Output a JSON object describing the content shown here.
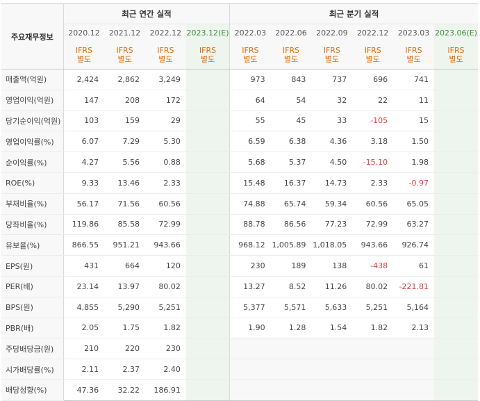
{
  "table": {
    "corner_label": "주요재무정보",
    "annual_title": "최근 연간 실적",
    "quarter_title": "최근 분기 실적",
    "annual_periods": [
      "2020.12",
      "2021.12",
      "2022.12",
      "2023.12(E)"
    ],
    "quarter_periods": [
      "2022.03",
      "2022.06",
      "2022.09",
      "2022.12",
      "2023.03",
      "2023.06(E)"
    ],
    "ifrs_line1": "IFRS",
    "ifrs_line2": "별도",
    "negative_color": "#e03c3c",
    "ifrs_color": "#e36c09",
    "estimate_color": "#3c8a3c",
    "rows": [
      {
        "label": "매출액(억원)",
        "annual": [
          "2,424",
          "2,862",
          "3,249",
          ""
        ],
        "quarter": [
          "973",
          "843",
          "737",
          "696",
          "741",
          ""
        ]
      },
      {
        "label": "영업이익(억원)",
        "annual": [
          "147",
          "208",
          "172",
          ""
        ],
        "quarter": [
          "64",
          "54",
          "32",
          "22",
          "11",
          ""
        ]
      },
      {
        "label": "당기순이익(억원)",
        "annual": [
          "103",
          "159",
          "29",
          ""
        ],
        "quarter": [
          "55",
          "45",
          "33",
          "-105",
          "15",
          ""
        ]
      },
      {
        "label": "영업이익률(%)",
        "annual": [
          "6.07",
          "7.29",
          "5.30",
          ""
        ],
        "quarter": [
          "6.59",
          "6.38",
          "4.36",
          "3.18",
          "1.50",
          ""
        ]
      },
      {
        "label": "순이익률(%)",
        "annual": [
          "4.27",
          "5.56",
          "0.88",
          ""
        ],
        "quarter": [
          "5.68",
          "5.37",
          "4.50",
          "-15.10",
          "1.98",
          ""
        ]
      },
      {
        "label": "ROE(%)",
        "annual": [
          "9.33",
          "13.46",
          "2.33",
          ""
        ],
        "quarter": [
          "15.48",
          "16.37",
          "14.73",
          "2.33",
          "-0.97",
          ""
        ]
      },
      {
        "label": "부채비율(%)",
        "annual": [
          "56.17",
          "71.56",
          "60.56",
          ""
        ],
        "quarter": [
          "74.88",
          "65.74",
          "59.34",
          "60.56",
          "65.05",
          ""
        ]
      },
      {
        "label": "당좌비율(%)",
        "annual": [
          "119.86",
          "85.58",
          "72.99",
          ""
        ],
        "quarter": [
          "88.78",
          "86.56",
          "77.23",
          "72.99",
          "63.27",
          ""
        ]
      },
      {
        "label": "유보율(%)",
        "annual": [
          "866.55",
          "951.21",
          "943.66",
          ""
        ],
        "quarter": [
          "968.12",
          "1,005.89",
          "1,018.05",
          "943.66",
          "926.74",
          ""
        ]
      },
      {
        "label": "EPS(원)",
        "annual": [
          "431",
          "664",
          "120",
          ""
        ],
        "quarter": [
          "230",
          "189",
          "138",
          "-438",
          "61",
          ""
        ]
      },
      {
        "label": "PER(배)",
        "annual": [
          "23.14",
          "13.97",
          "80.02",
          ""
        ],
        "quarter": [
          "13.27",
          "8.52",
          "11.26",
          "80.02",
          "-221.81",
          ""
        ]
      },
      {
        "label": "BPS(원)",
        "annual": [
          "4,855",
          "5,290",
          "5,251",
          ""
        ],
        "quarter": [
          "5,377",
          "5,571",
          "5,633",
          "5,251",
          "5,164",
          ""
        ]
      },
      {
        "label": "PBR(배)",
        "annual": [
          "2.05",
          "1.75",
          "1.82",
          ""
        ],
        "quarter": [
          "1.90",
          "1.28",
          "1.54",
          "1.82",
          "2.13",
          ""
        ]
      },
      {
        "label": "주당배당금(원)",
        "annual": [
          "210",
          "220",
          "230",
          ""
        ],
        "quarter": [
          "",
          "",
          "",
          "",
          "",
          ""
        ]
      },
      {
        "label": "시가배당률(%)",
        "annual": [
          "2.11",
          "2.37",
          "2.40",
          ""
        ],
        "quarter": [
          "",
          "",
          "",
          "",
          "",
          ""
        ]
      },
      {
        "label": "배당성향(%)",
        "annual": [
          "47.36",
          "32.22",
          "186.91",
          ""
        ],
        "quarter": [
          "",
          "",
          "",
          "",
          "",
          ""
        ]
      }
    ]
  }
}
